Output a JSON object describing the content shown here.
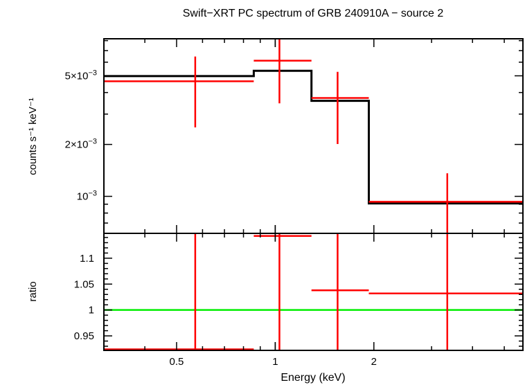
{
  "chart_data": [
    {
      "type": "line",
      "panel": "spectrum",
      "title": "Swift−XRT PC spectrum of GRB 240910A − source 2",
      "ylabel": "counts s⁻¹ keV⁻¹",
      "yscale": "log",
      "xscale": "log",
      "xlim": [
        0.3,
        5.7
      ],
      "ylim": [
        0.00061,
        0.0082
      ],
      "yticks": [
        {
          "value": 0.005,
          "base": "5×10",
          "exp": "−3"
        },
        {
          "value": 0.002,
          "base": "2×10",
          "exp": "−3"
        },
        {
          "value": 0.001,
          "base": "10",
          "exp": "−3"
        }
      ],
      "series": [
        {
          "color": "#000000",
          "style": "step",
          "edges": [
            0.3,
            0.86,
            1.29,
            1.93,
            5.7
          ],
          "values": [
            0.00498,
            0.00535,
            0.00358,
            0.00091
          ]
        },
        {
          "color": "#ff0000",
          "style": "errorbar",
          "points": [
            {
              "x": 0.57,
              "xlo": 0.3,
              "xhi": 0.86,
              "y": 0.00465,
              "ylo": 0.00251,
              "yhi": 0.00647
            },
            {
              "x": 1.03,
              "xlo": 0.86,
              "xhi": 1.29,
              "y": 0.00612,
              "ylo": 0.00346,
              "yhi": 0.00829
            },
            {
              "x": 1.55,
              "xlo": 1.29,
              "xhi": 1.93,
              "y": 0.00372,
              "ylo": 0.00201,
              "yhi": 0.00527
            },
            {
              "x": 3.35,
              "xlo": 1.93,
              "xhi": 5.7,
              "y": 0.00093,
              "ylo": 0.00061,
              "yhi": 0.00136
            }
          ]
        }
      ]
    },
    {
      "type": "line",
      "panel": "ratio",
      "xlabel": "Energy (keV)",
      "ylabel": "ratio",
      "xscale": "log",
      "xlim": [
        0.3,
        5.7
      ],
      "ylim": [
        0.922,
        1.148
      ],
      "xticks": [
        {
          "value": 0.5,
          "label": "0.5"
        },
        {
          "value": 1,
          "label": "1"
        },
        {
          "value": 2,
          "label": "2"
        }
      ],
      "yticks": [
        {
          "value": 0.95,
          "label": "0.95"
        },
        {
          "value": 1.0,
          "label": "1"
        },
        {
          "value": 1.05,
          "label": "1.05"
        },
        {
          "value": 1.1,
          "label": "1.1"
        }
      ],
      "series": [
        {
          "color": "#00ee00",
          "style": "hline",
          "y": 1.0
        },
        {
          "color": "#ff0000",
          "style": "errorbar",
          "points": [
            {
              "x": 0.57,
              "xlo": 0.3,
              "xhi": 0.86,
              "y": 0.924,
              "ylo": 0.88,
              "yhi": 1.2
            },
            {
              "x": 1.03,
              "xlo": 0.86,
              "xhi": 1.29,
              "y": 1.143,
              "ylo": 0.88,
              "yhi": 1.2
            },
            {
              "x": 1.55,
              "xlo": 1.29,
              "xhi": 1.93,
              "y": 1.038,
              "ylo": 0.88,
              "yhi": 1.2
            },
            {
              "x": 3.35,
              "xlo": 1.93,
              "xhi": 5.7,
              "y": 1.032,
              "ylo": 0.88,
              "yhi": 1.2
            }
          ]
        }
      ]
    }
  ]
}
